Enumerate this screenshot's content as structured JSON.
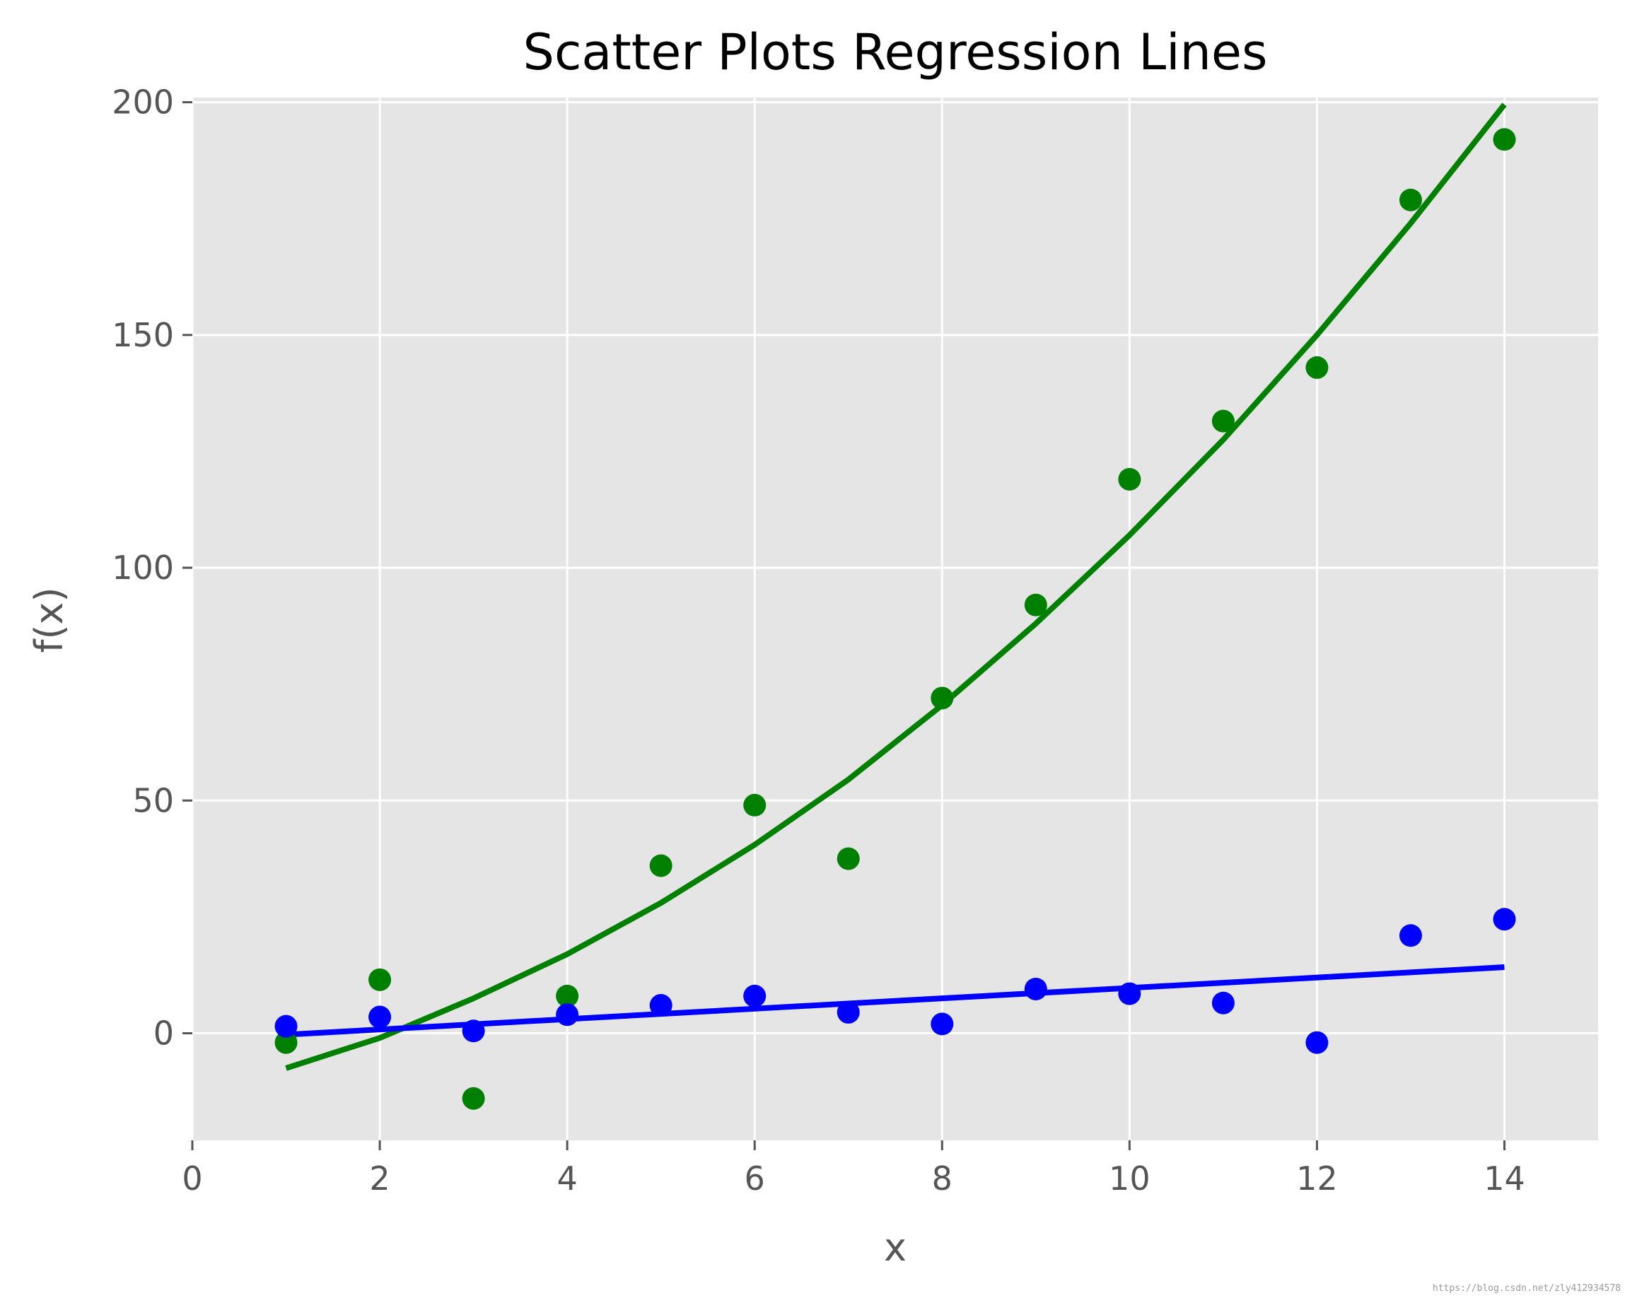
{
  "chart_data": {
    "type": "scatter",
    "title": "Scatter Plots Regression Lines",
    "xlabel": "x",
    "ylabel": "f(x)",
    "xlim": [
      0,
      15
    ],
    "ylim": [
      -23,
      201
    ],
    "xticks": [
      0,
      2,
      4,
      6,
      8,
      10,
      12,
      14
    ],
    "yticks": [
      0,
      50,
      100,
      150,
      200
    ],
    "grid": true,
    "background": "#e5e5e5",
    "series": [
      {
        "kind": "scatter",
        "color": "#008000",
        "x": [
          1,
          2,
          3,
          4,
          5,
          6,
          7,
          8,
          9,
          10,
          11,
          12,
          13,
          14
        ],
        "y": [
          -2,
          11.5,
          -14,
          8,
          36,
          49,
          37.5,
          72,
          92,
          119,
          131.5,
          143,
          179,
          192
        ]
      },
      {
        "kind": "scatter",
        "color": "#0000ff",
        "x": [
          1,
          2,
          3,
          4,
          5,
          6,
          7,
          8,
          9,
          10,
          11,
          12,
          13,
          14
        ],
        "y": [
          1.5,
          3.5,
          0.5,
          4,
          6,
          8,
          4.5,
          2,
          9.5,
          8.5,
          6.5,
          -2,
          21,
          24.5
        ]
      },
      {
        "kind": "line",
        "color": "#008000",
        "x": [
          1,
          2,
          3,
          4,
          5,
          6,
          7,
          8,
          9,
          10,
          11,
          12,
          13,
          14
        ],
        "y": [
          -7.5,
          -1,
          7.5,
          17,
          28,
          40.5,
          54.5,
          70.5,
          88,
          107,
          127.5,
          150,
          174,
          199.5
        ]
      },
      {
        "kind": "line",
        "color": "#0000ff",
        "x": [
          1,
          14
        ],
        "y": [
          -0.3,
          14.2
        ]
      }
    ],
    "watermark": "https://blog.csdn.net/zly412934578"
  }
}
